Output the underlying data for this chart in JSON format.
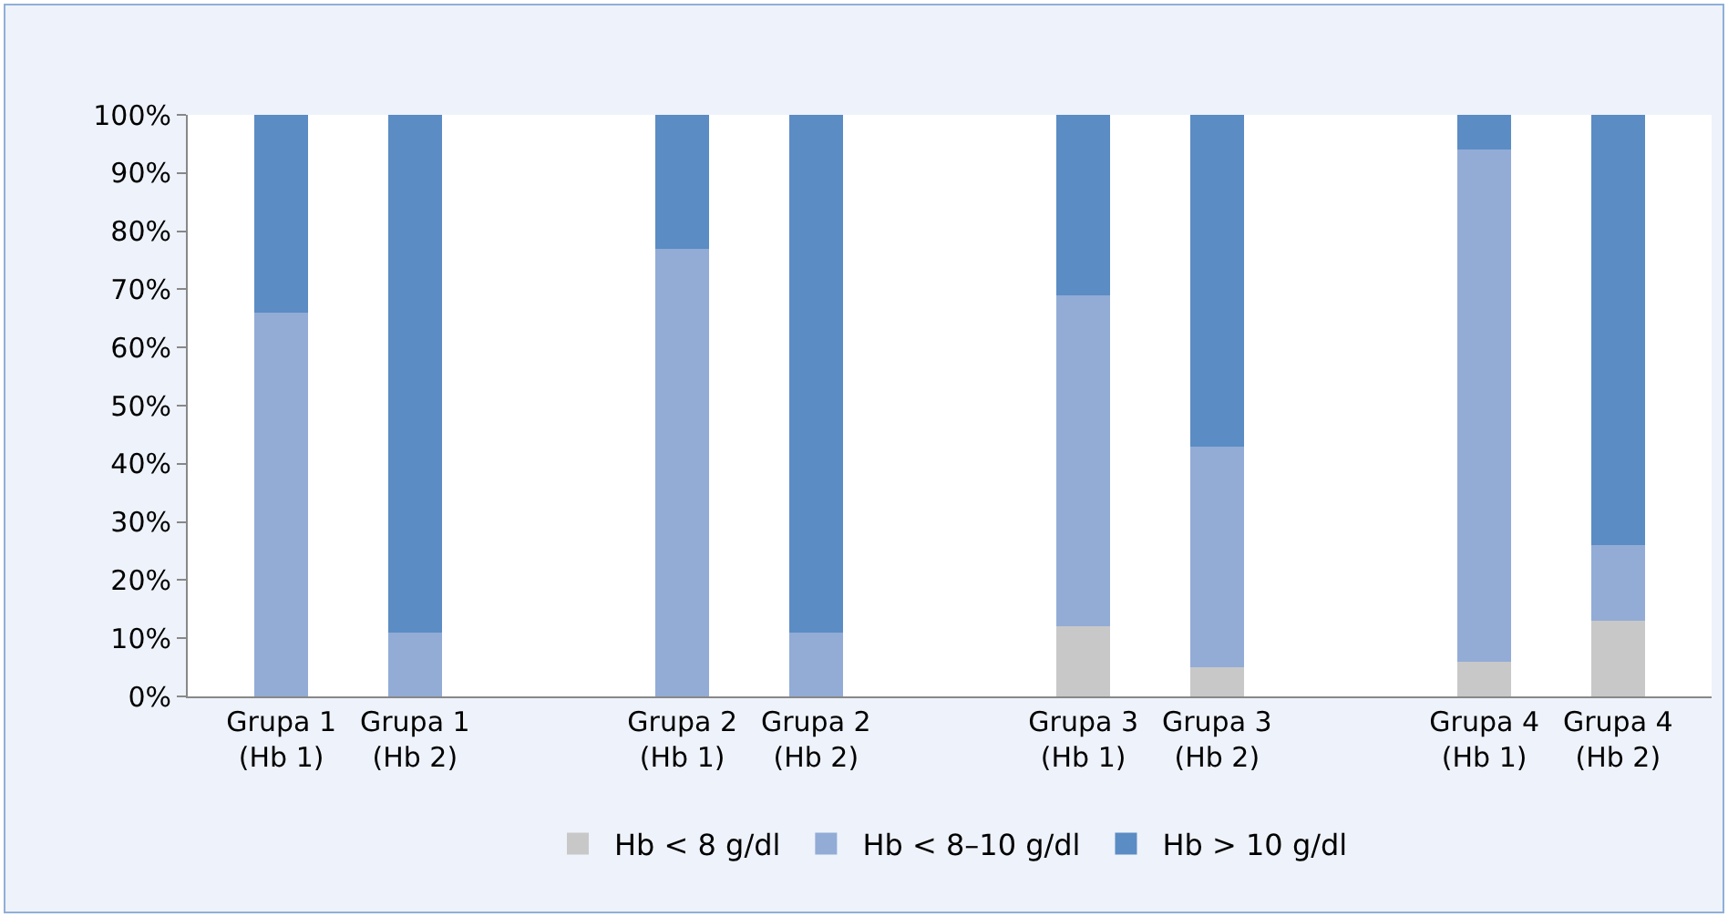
{
  "chart_data": {
    "type": "bar",
    "stacked": true,
    "categories": [
      "Grupa 1\n(Hb 1)",
      "Grupa 1\n(Hb 2)",
      null,
      "Grupa 2\n(Hb 1)",
      "Grupa 2\n(Hb 2)",
      null,
      "Grupa 3\n(Hb 1)",
      "Grupa 3\n(Hb 2)",
      null,
      "Grupa 4\n(Hb 1)",
      "Grupa 4\n(Hb 2)"
    ],
    "series": [
      {
        "name": "Hb < 8 g/dl",
        "color": "#c8c8c8",
        "values": [
          0,
          0,
          null,
          0,
          0,
          null,
          12,
          5,
          null,
          6,
          13
        ]
      },
      {
        "name": "Hb < 8–10 g/dl",
        "color": "#92acd6",
        "values": [
          66,
          11,
          null,
          77,
          11,
          null,
          57,
          38,
          null,
          88,
          13
        ]
      },
      {
        "name": "Hb > 10 g/dl",
        "color": "#5b8cc4",
        "values": [
          34,
          89,
          null,
          23,
          89,
          null,
          31,
          57,
          null,
          6,
          74
        ]
      }
    ],
    "ylim": [
      0,
      100
    ],
    "yticks": [
      {
        "value": 0,
        "label": "0%"
      },
      {
        "value": 10,
        "label": "10%"
      },
      {
        "value": 20,
        "label": "20%"
      },
      {
        "value": 30,
        "label": "30%"
      },
      {
        "value": 40,
        "label": "40%"
      },
      {
        "value": 50,
        "label": "50%"
      },
      {
        "value": 60,
        "label": "60%"
      },
      {
        "value": 70,
        "label": "70%"
      },
      {
        "value": 80,
        "label": "80%"
      },
      {
        "value": 90,
        "label": "90%"
      },
      {
        "value": 100,
        "label": "100%"
      }
    ],
    "grid": false,
    "legend": "bottom"
  }
}
